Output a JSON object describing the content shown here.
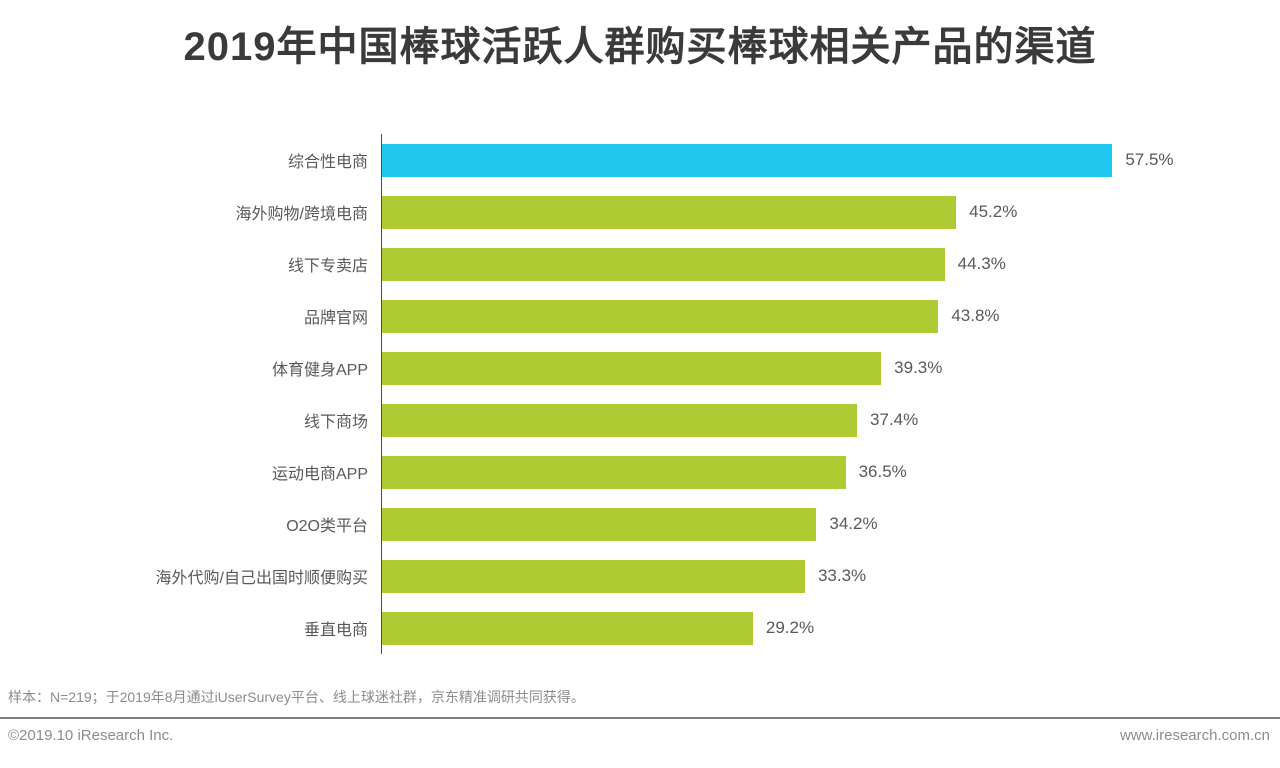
{
  "title": "2019年中国棒球活跃人群购买棒球相关产品的渠道",
  "chart_data": {
    "type": "bar",
    "orientation": "horizontal",
    "title": "2019年中国棒球活跃人群购买棒球相关产品的渠道",
    "categories": [
      "综合性电商",
      "海外购物/跨境电商",
      "线下专卖店",
      "品牌官网",
      "体育健身APP",
      "线下商场",
      "运动电商APP",
      "O2O类平台",
      "海外代购/自己出国时顺便购买",
      "垂直电商"
    ],
    "values": [
      57.5,
      45.2,
      44.3,
      43.8,
      39.3,
      37.4,
      36.5,
      34.2,
      33.3,
      29.2
    ],
    "value_labels": [
      "57.5%",
      "45.2%",
      "44.3%",
      "43.8%",
      "39.3%",
      "37.4%",
      "36.5%",
      "34.2%",
      "33.3%",
      "29.2%"
    ],
    "xlim": [
      0,
      70.7
    ],
    "grid": false,
    "legend": null,
    "highlight_index": 0,
    "highlight_color": "#22c7f0",
    "bar_color": "#aecb34"
  },
  "colors": {
    "title_text": "#3a3a3a",
    "label_text": "#595959",
    "axis_line": "#4d4d4d",
    "footnote_text": "#8c8c8c"
  },
  "footnote": "样本：N=219；于2019年8月通过iUserSurvey平台、线上球迷社群，京东精准调研共同获得。",
  "footer": {
    "left": "©2019.10 iResearch Inc.",
    "right": "www.iresearch.com.cn"
  }
}
